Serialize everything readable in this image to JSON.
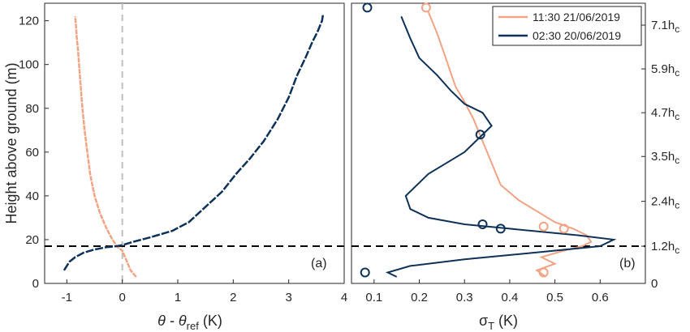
{
  "colors": {
    "afternoon": "#F2A383",
    "night": "#0E3158",
    "axis": "#262626",
    "zero_line": "#BFBFBF",
    "height_line": "#000000"
  },
  "chart_data": [
    {
      "type": "line",
      "panel_label": "(a)",
      "ylabel": "Height above ground (m)",
      "xlabel_main": "θ - θ",
      "xlabel_sub": "ref",
      "xlabel_unit": " (K)",
      "xlim": [
        -1.4,
        4
      ],
      "ylim": [
        0,
        128
      ],
      "xticks": [
        "-1",
        "0",
        "1",
        "2",
        "3",
        "4"
      ],
      "xtick_values": [
        -1,
        0,
        1,
        2,
        3,
        4
      ],
      "yticks": [
        "0",
        "20",
        "40",
        "60",
        "80",
        "100",
        "120"
      ],
      "ytick_values": [
        0,
        20,
        40,
        60,
        80,
        100,
        120
      ],
      "zero_line_x": 0,
      "hline_y": 17,
      "series": [
        {
          "key": "afternoon",
          "x": [
            0.25,
            0.15,
            0.1,
            0.05,
            0.0,
            -0.1,
            -0.2,
            -0.3,
            -0.4,
            -0.5,
            -0.58,
            -0.63,
            -0.68,
            -0.72,
            -0.75,
            -0.78,
            -0.8,
            -0.82,
            -0.83,
            -0.84,
            -0.85
          ],
          "y": [
            3,
            6,
            9,
            12,
            15,
            17,
            21,
            26,
            32,
            40,
            50,
            60,
            70,
            80,
            90,
            100,
            107,
            112,
            116,
            119,
            122
          ]
        },
        {
          "key": "night",
          "x": [
            -1.05,
            -1.0,
            -0.95,
            -0.85,
            -0.7,
            -0.5,
            -0.3,
            -0.1,
            0.0,
            0.2,
            0.5,
            0.9,
            1.2,
            1.5,
            1.8,
            2.05,
            2.3,
            2.55,
            2.8,
            3.0,
            3.15,
            3.3,
            3.42,
            3.52,
            3.6,
            3.62
          ],
          "y": [
            6,
            8,
            10,
            12,
            14,
            15.5,
            16.5,
            17,
            17.5,
            19,
            21,
            24,
            28,
            35,
            42,
            50,
            57,
            65,
            75,
            85,
            95,
            103,
            110,
            115,
            120,
            123
          ]
        }
      ]
    },
    {
      "type": "line",
      "panel_label": "(b)",
      "xlabel_main": "σ",
      "xlabel_sub": "T",
      "xlabel_unit": " (K)",
      "xlim": [
        0.05,
        0.7
      ],
      "ylim": [
        0,
        128
      ],
      "xticks": [
        "0.1",
        "0.2",
        "0.3",
        "0.4",
        "0.5",
        "0.6"
      ],
      "xtick_values": [
        0.1,
        0.2,
        0.3,
        0.4,
        0.5,
        0.6
      ],
      "right_ticks": [
        "0",
        "1.2h",
        "2.4h",
        "3.5h",
        "4.7h",
        "5.9h",
        "7.1h"
      ],
      "right_tick_sub": "c",
      "right_tick_values": [
        0,
        17,
        37.5,
        58,
        78,
        98,
        118
      ],
      "legend_position": "top-right",
      "legend": [
        {
          "key": "afternoon",
          "label": "11:30 21/06/2019"
        },
        {
          "key": "night",
          "label": "02:30 20/06/2019"
        }
      ],
      "hline_y": 17,
      "series": [
        {
          "key": "afternoon",
          "x": [
            0.48,
            0.46,
            0.5,
            0.47,
            0.52,
            0.56,
            0.58,
            0.57,
            0.54,
            0.5,
            0.46,
            0.42,
            0.38,
            0.36,
            0.34,
            0.32,
            0.3,
            0.28,
            0.27,
            0.26,
            0.25,
            0.24,
            0.23,
            0.22
          ],
          "y": [
            3,
            6,
            9,
            12,
            15,
            17,
            19,
            22,
            25,
            28,
            33,
            38,
            45,
            55,
            65,
            75,
            83,
            90,
            96,
            102,
            108,
            114,
            119,
            124
          ]
        },
        {
          "key": "night",
          "x": [
            0.15,
            0.13,
            0.18,
            0.3,
            0.45,
            0.6,
            0.63,
            0.55,
            0.4,
            0.3,
            0.22,
            0.18,
            0.17,
            0.2,
            0.22,
            0.26,
            0.3,
            0.33,
            0.36,
            0.34,
            0.3,
            0.27,
            0.24,
            0.2,
            0.18,
            0.16
          ],
          "y": [
            3,
            5,
            8,
            11,
            14,
            17,
            20,
            22,
            25,
            27,
            30,
            34,
            40,
            46,
            50,
            55,
            60,
            66,
            72,
            78,
            82,
            88,
            95,
            103,
            112,
            122
          ]
        }
      ],
      "markers": [
        {
          "key": "afternoon",
          "x": [
            0.475,
            0.475,
            0.52,
            0.215
          ],
          "y": [
            5,
            26,
            25,
            126
          ]
        },
        {
          "key": "night",
          "x": [
            0.08,
            0.34,
            0.38,
            0.335,
            0.085
          ],
          "y": [
            5,
            27,
            25,
            68,
            126
          ]
        }
      ]
    }
  ]
}
